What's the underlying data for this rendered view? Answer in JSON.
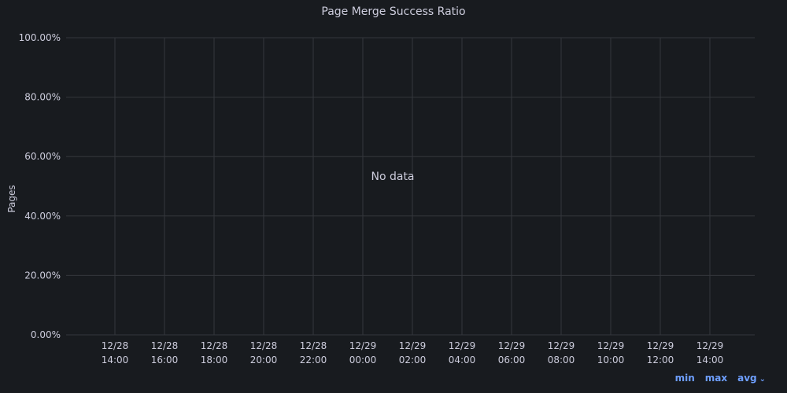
{
  "chart_data": {
    "type": "line",
    "title": "Page Merge Success Ratio",
    "ylabel": "Pages",
    "xlabel": "",
    "ylim": [
      0,
      100
    ],
    "y_ticks": [
      "0.00%",
      "20.00%",
      "40.00%",
      "60.00%",
      "80.00%",
      "100.00%"
    ],
    "x_ticks": [
      {
        "date": "12/28",
        "time": "14:00"
      },
      {
        "date": "12/28",
        "time": "16:00"
      },
      {
        "date": "12/28",
        "time": "18:00"
      },
      {
        "date": "12/28",
        "time": "20:00"
      },
      {
        "date": "12/28",
        "time": "22:00"
      },
      {
        "date": "12/29",
        "time": "00:00"
      },
      {
        "date": "12/29",
        "time": "02:00"
      },
      {
        "date": "12/29",
        "time": "04:00"
      },
      {
        "date": "12/29",
        "time": "06:00"
      },
      {
        "date": "12/29",
        "time": "08:00"
      },
      {
        "date": "12/29",
        "time": "10:00"
      },
      {
        "date": "12/29",
        "time": "12:00"
      },
      {
        "date": "12/29",
        "time": "14:00"
      }
    ],
    "series": [],
    "no_data_text": "No data",
    "grid": true
  },
  "legend": {
    "items": [
      "min",
      "max",
      "avg"
    ]
  },
  "colors": {
    "background": "#181b1f",
    "grid": "#34373c",
    "text": "#ccccdc",
    "accent": "#6e9fff"
  }
}
